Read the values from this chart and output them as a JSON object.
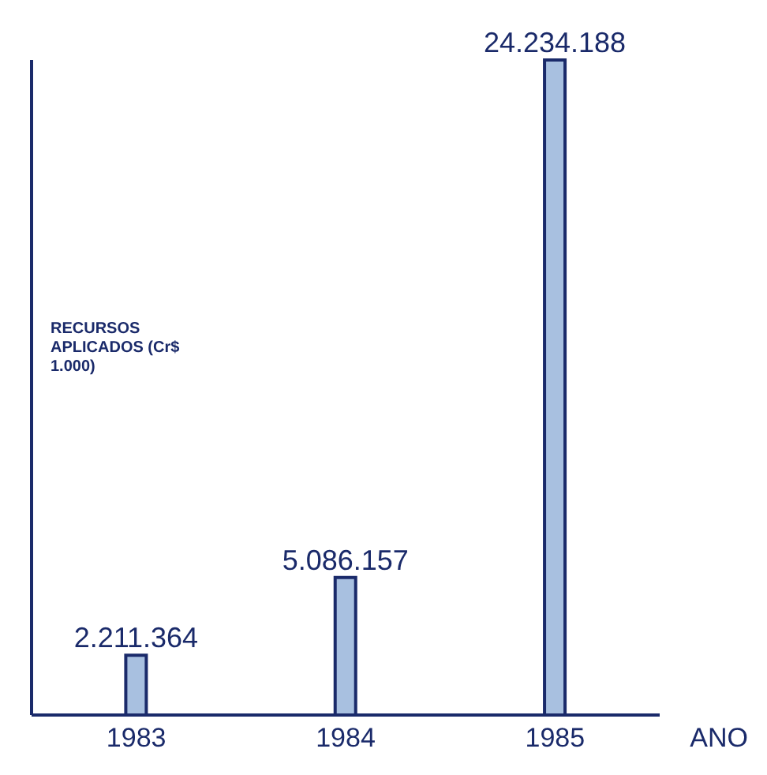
{
  "chart_data": {
    "type": "bar",
    "ylabel": "RECURSOS APLICADOS (Cr$ 1.000)",
    "xlabel": "ANO",
    "categories": [
      "1983",
      "1984",
      "1985"
    ],
    "values": [
      2211364,
      5086157,
      24234188
    ],
    "value_labels": [
      "2.211.364",
      "5.086.157",
      "24.234.188"
    ],
    "color": "#a8c0e0",
    "grid": false,
    "legend": false
  }
}
